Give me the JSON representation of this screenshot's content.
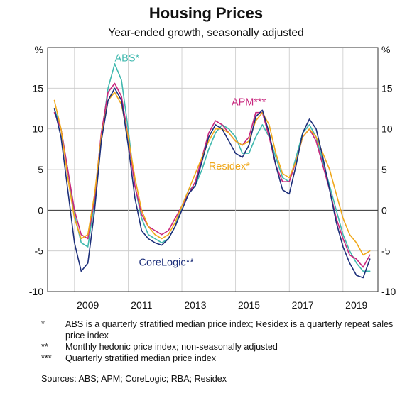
{
  "title": "Housing Prices",
  "subtitle": "Year-ended growth, seasonally adjusted",
  "chart_data": {
    "type": "line",
    "ylabel_left": "%",
    "ylabel_right": "%",
    "ylim": [
      -10,
      20
    ],
    "xlim": [
      2007.5,
      2019.8
    ],
    "yticks": [
      -10,
      -5,
      0,
      5,
      10,
      15
    ],
    "xticks": [
      2009,
      2011,
      2013,
      2015,
      2017,
      2019
    ],
    "grid": true,
    "zero_line": true,
    "series": [
      {
        "name": "ABS*",
        "color": "#3fb8ae",
        "label_position": [
          2010.0,
          18.3
        ],
        "points": [
          [
            2007.75,
            12.5
          ],
          [
            2008.0,
            10.0
          ],
          [
            2008.25,
            5.0
          ],
          [
            2008.5,
            -0.5
          ],
          [
            2008.75,
            -4.0
          ],
          [
            2009.0,
            -4.5
          ],
          [
            2009.25,
            1.0
          ],
          [
            2009.5,
            9.0
          ],
          [
            2009.75,
            15.0
          ],
          [
            2010.0,
            18.0
          ],
          [
            2010.25,
            16.0
          ],
          [
            2010.5,
            10.0
          ],
          [
            2010.75,
            3.0
          ],
          [
            2011.0,
            -1.0
          ],
          [
            2011.25,
            -3.0
          ],
          [
            2011.5,
            -3.5
          ],
          [
            2011.75,
            -4.0
          ],
          [
            2012.0,
            -3.5
          ],
          [
            2012.25,
            -2.0
          ],
          [
            2012.5,
            0.5
          ],
          [
            2012.75,
            2.5
          ],
          [
            2013.0,
            3.0
          ],
          [
            2013.25,
            5.0
          ],
          [
            2013.5,
            7.5
          ],
          [
            2013.75,
            9.5
          ],
          [
            2014.0,
            10.5
          ],
          [
            2014.25,
            10.0
          ],
          [
            2014.5,
            9.0
          ],
          [
            2014.75,
            7.0
          ],
          [
            2015.0,
            7.0
          ],
          [
            2015.25,
            9.0
          ],
          [
            2015.5,
            10.5
          ],
          [
            2015.75,
            9.0
          ],
          [
            2016.0,
            6.5
          ],
          [
            2016.25,
            4.0
          ],
          [
            2016.5,
            3.5
          ],
          [
            2016.75,
            6.5
          ],
          [
            2017.0,
            9.5
          ],
          [
            2017.25,
            10.5
          ],
          [
            2017.5,
            9.0
          ],
          [
            2017.75,
            6.0
          ],
          [
            2018.0,
            3.0
          ],
          [
            2018.25,
            0.0
          ],
          [
            2018.5,
            -3.0
          ],
          [
            2018.75,
            -5.0
          ],
          [
            2019.0,
            -6.5
          ],
          [
            2019.25,
            -7.5
          ],
          [
            2019.5,
            -7.5
          ]
        ]
      },
      {
        "name": "APM***",
        "color": "#c8267d",
        "label_position": [
          2014.35,
          12.9
        ],
        "points": [
          [
            2007.75,
            12.0
          ],
          [
            2008.0,
            10.0
          ],
          [
            2008.25,
            5.0
          ],
          [
            2008.5,
            0.0
          ],
          [
            2008.75,
            -3.0
          ],
          [
            2009.0,
            -3.5
          ],
          [
            2009.25,
            1.5
          ],
          [
            2009.5,
            9.5
          ],
          [
            2009.75,
            14.5
          ],
          [
            2010.0,
            15.6
          ],
          [
            2010.25,
            14.0
          ],
          [
            2010.5,
            9.0
          ],
          [
            2010.75,
            3.0
          ],
          [
            2011.0,
            -0.5
          ],
          [
            2011.25,
            -2.0
          ],
          [
            2011.5,
            -2.5
          ],
          [
            2011.75,
            -3.0
          ],
          [
            2012.0,
            -2.5
          ],
          [
            2012.25,
            -1.0
          ],
          [
            2012.5,
            0.5
          ],
          [
            2012.75,
            2.0
          ],
          [
            2013.0,
            3.5
          ],
          [
            2013.25,
            6.5
          ],
          [
            2013.5,
            9.5
          ],
          [
            2013.75,
            11.0
          ],
          [
            2014.0,
            10.5
          ],
          [
            2014.25,
            9.5
          ],
          [
            2014.5,
            8.5
          ],
          [
            2014.75,
            8.0
          ],
          [
            2015.0,
            9.0
          ],
          [
            2015.25,
            12.0
          ],
          [
            2015.5,
            12.0
          ],
          [
            2015.75,
            9.0
          ],
          [
            2016.0,
            5.5
          ],
          [
            2016.25,
            3.5
          ],
          [
            2016.5,
            3.5
          ],
          [
            2016.75,
            6.0
          ],
          [
            2017.0,
            9.0
          ],
          [
            2017.25,
            10.0
          ],
          [
            2017.5,
            8.5
          ],
          [
            2017.75,
            5.5
          ],
          [
            2018.0,
            2.5
          ],
          [
            2018.25,
            -1.0
          ],
          [
            2018.5,
            -3.5
          ],
          [
            2018.75,
            -5.5
          ],
          [
            2019.0,
            -6.0
          ],
          [
            2019.25,
            -7.0
          ],
          [
            2019.5,
            -5.5
          ]
        ]
      },
      {
        "name": "Residex*",
        "color": "#f0a81b",
        "label_position": [
          2013.5,
          5.0
        ],
        "points": [
          [
            2007.75,
            13.5
          ],
          [
            2008.0,
            10.0
          ],
          [
            2008.25,
            4.0
          ],
          [
            2008.5,
            -1.0
          ],
          [
            2008.75,
            -3.5
          ],
          [
            2009.0,
            -3.0
          ],
          [
            2009.25,
            2.0
          ],
          [
            2009.5,
            9.0
          ],
          [
            2009.75,
            13.5
          ],
          [
            2010.0,
            14.5
          ],
          [
            2010.25,
            13.0
          ],
          [
            2010.5,
            9.0
          ],
          [
            2010.75,
            4.0
          ],
          [
            2011.0,
            0.0
          ],
          [
            2011.25,
            -2.0
          ],
          [
            2011.5,
            -3.0
          ],
          [
            2011.75,
            -3.5
          ],
          [
            2012.0,
            -3.0
          ],
          [
            2012.25,
            -1.5
          ],
          [
            2012.5,
            0.5
          ],
          [
            2012.75,
            2.5
          ],
          [
            2013.0,
            4.5
          ],
          [
            2013.25,
            6.5
          ],
          [
            2013.5,
            8.5
          ],
          [
            2013.75,
            10.0
          ],
          [
            2014.0,
            10.0
          ],
          [
            2014.25,
            9.5
          ],
          [
            2014.5,
            8.5
          ],
          [
            2014.75,
            8.0
          ],
          [
            2015.0,
            8.5
          ],
          [
            2015.25,
            11.0
          ],
          [
            2015.5,
            12.0
          ],
          [
            2015.75,
            10.5
          ],
          [
            2016.0,
            7.0
          ],
          [
            2016.25,
            4.5
          ],
          [
            2016.5,
            4.0
          ],
          [
            2016.75,
            6.0
          ],
          [
            2017.0,
            9.0
          ],
          [
            2017.25,
            10.0
          ],
          [
            2017.5,
            9.0
          ],
          [
            2017.75,
            7.0
          ],
          [
            2018.0,
            5.0
          ],
          [
            2018.25,
            2.0
          ],
          [
            2018.5,
            -1.0
          ],
          [
            2018.75,
            -3.0
          ],
          [
            2019.0,
            -4.0
          ],
          [
            2019.25,
            -5.5
          ],
          [
            2019.5,
            -5.0
          ]
        ]
      },
      {
        "name": "CoreLogic**",
        "color": "#1d2f7a",
        "label_position": [
          2010.9,
          -6.8
        ],
        "points": [
          [
            2007.75,
            12.5
          ],
          [
            2008.0,
            9.0
          ],
          [
            2008.25,
            2.5
          ],
          [
            2008.5,
            -4.0
          ],
          [
            2008.75,
            -7.5
          ],
          [
            2009.0,
            -6.5
          ],
          [
            2009.25,
            0.0
          ],
          [
            2009.5,
            8.5
          ],
          [
            2009.75,
            13.5
          ],
          [
            2010.0,
            15.0
          ],
          [
            2010.25,
            13.5
          ],
          [
            2010.5,
            8.0
          ],
          [
            2010.75,
            1.5
          ],
          [
            2011.0,
            -2.5
          ],
          [
            2011.25,
            -3.5
          ],
          [
            2011.5,
            -4.0
          ],
          [
            2011.75,
            -4.3
          ],
          [
            2012.0,
            -3.5
          ],
          [
            2012.25,
            -2.0
          ],
          [
            2012.5,
            0.0
          ],
          [
            2012.75,
            2.0
          ],
          [
            2013.0,
            3.0
          ],
          [
            2013.25,
            6.0
          ],
          [
            2013.5,
            9.0
          ],
          [
            2013.75,
            10.5
          ],
          [
            2014.0,
            10.0
          ],
          [
            2014.25,
            8.5
          ],
          [
            2014.5,
            7.0
          ],
          [
            2014.75,
            6.5
          ],
          [
            2015.0,
            8.0
          ],
          [
            2015.25,
            11.5
          ],
          [
            2015.5,
            12.3
          ],
          [
            2015.75,
            9.5
          ],
          [
            2016.0,
            5.5
          ],
          [
            2016.25,
            2.5
          ],
          [
            2016.5,
            2.0
          ],
          [
            2016.75,
            5.5
          ],
          [
            2017.0,
            9.5
          ],
          [
            2017.25,
            11.2
          ],
          [
            2017.5,
            10.0
          ],
          [
            2017.75,
            6.5
          ],
          [
            2018.0,
            2.5
          ],
          [
            2018.25,
            -1.5
          ],
          [
            2018.5,
            -4.5
          ],
          [
            2018.75,
            -6.5
          ],
          [
            2019.0,
            -8.0
          ],
          [
            2019.25,
            -8.3
          ],
          [
            2019.5,
            -6.0
          ]
        ]
      }
    ]
  },
  "notes": [
    {
      "mark": "*",
      "text": "ABS is a quarterly stratified median price index; Residex is a quarterly repeat sales price index"
    },
    {
      "mark": "**",
      "text": "Monthly hedonic price index; non-seasonally adjusted"
    },
    {
      "mark": "***",
      "text": "Quarterly stratified median price index"
    }
  ],
  "sources": "Sources: ABS; APM; CoreLogic; RBA; Residex"
}
